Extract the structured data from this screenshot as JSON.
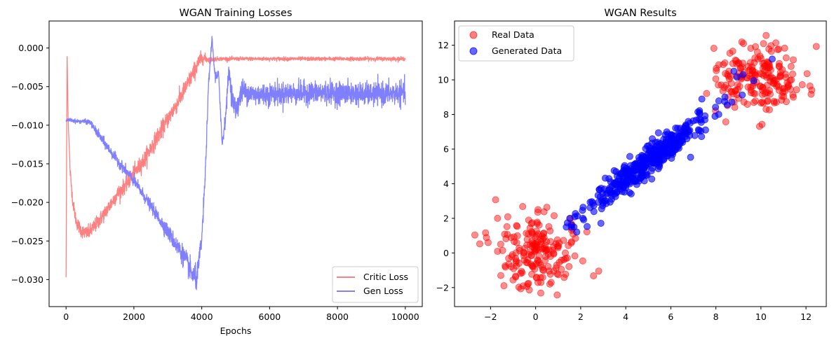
{
  "chart_data": [
    {
      "type": "line",
      "title": "WGAN Training Losses",
      "xlabel": "Epochs",
      "ylabel": "",
      "xlim": [
        -500,
        10500
      ],
      "ylim": [
        -0.0335,
        0.0035
      ],
      "xticks": [
        0,
        2000,
        4000,
        6000,
        8000,
        10000
      ],
      "xtick_labels": [
        "0",
        "2000",
        "4000",
        "6000",
        "8000",
        "10000"
      ],
      "yticks": [
        0.0,
        -0.005,
        -0.01,
        -0.015,
        -0.02,
        -0.025,
        -0.03
      ],
      "ytick_labels": [
        "0.000",
        "−0.005",
        "−0.010",
        "−0.015",
        "−0.020",
        "−0.025",
        "−0.030"
      ],
      "legend_position": "lower-right",
      "series": [
        {
          "name": "Critic Loss",
          "color": "#ff8080",
          "x": [
            0,
            30,
            60,
            120,
            200,
            300,
            450,
            600,
            700,
            800,
            1000,
            1200,
            1500,
            1800,
            2000,
            2300,
            2600,
            3000,
            3300,
            3600,
            3800,
            3950,
            4050,
            4200,
            4500,
            5000,
            6000,
            7000,
            8000,
            9000,
            10000
          ],
          "values": [
            -0.0297,
            -0.0006,
            -0.009,
            -0.016,
            -0.02,
            -0.0225,
            -0.0237,
            -0.024,
            -0.0238,
            -0.0233,
            -0.0222,
            -0.021,
            -0.019,
            -0.0175,
            -0.0163,
            -0.0145,
            -0.0122,
            -0.0092,
            -0.007,
            -0.0045,
            -0.0028,
            -0.0015,
            -0.0013,
            -0.0015,
            -0.0014,
            -0.0014,
            -0.0014,
            -0.0014,
            -0.0014,
            -0.0014,
            -0.0014
          ],
          "noise": [
            0,
            0,
            0,
            0.0006,
            0.0006,
            0.0007,
            0.0007,
            0.0007,
            0.0008,
            0.0008,
            0.0008,
            0.0008,
            0.0008,
            0.0008,
            0.0009,
            0.0009,
            0.0009,
            0.0009,
            0.0009,
            0.0009,
            0.0009,
            0.0008,
            0.0006,
            0.0003,
            0.0002,
            0.0002,
            0.0002,
            0.0002,
            0.0002,
            0.0002,
            0.0002
          ]
        },
        {
          "name": "Gen Loss",
          "color": "#8080ff",
          "x": [
            0,
            100,
            300,
            500,
            700,
            1000,
            1500,
            2000,
            2500,
            3000,
            3500,
            3700,
            3850,
            4000,
            4100,
            4200,
            4300,
            4400,
            4500,
            4600,
            4700,
            4800,
            4900,
            5000,
            5200,
            5500,
            6000,
            7000,
            8000,
            9000,
            10000
          ],
          "values": [
            -0.0094,
            -0.0093,
            -0.0095,
            -0.0095,
            -0.0096,
            -0.0115,
            -0.0145,
            -0.0172,
            -0.0205,
            -0.0238,
            -0.0272,
            -0.0292,
            -0.03,
            -0.0248,
            -0.0168,
            -0.0048,
            0.0012,
            -0.004,
            -0.0035,
            -0.0125,
            -0.009,
            -0.003,
            -0.0065,
            -0.008,
            -0.0055,
            -0.006,
            -0.006,
            -0.0058,
            -0.0058,
            -0.006,
            -0.0058
          ],
          "noise": [
            0.0001,
            0.0002,
            0.0002,
            0.0002,
            0.0003,
            0.0005,
            0.0005,
            0.0006,
            0.0006,
            0.0008,
            0.0011,
            0.0012,
            0.0012,
            0.001,
            0.0008,
            0.0006,
            0.0005,
            0.0006,
            0.0006,
            0.0006,
            0.0008,
            0.001,
            0.0011,
            0.0012,
            0.0012,
            0.0012,
            0.0012,
            0.0012,
            0.0012,
            0.0012,
            0.0012
          ]
        }
      ]
    },
    {
      "type": "scatter",
      "title": "WGAN Results",
      "xlabel": "",
      "ylabel": "",
      "xlim": [
        -3.6,
        12.9
      ],
      "ylim": [
        -3.1,
        13.4
      ],
      "xticks": [
        -2,
        0,
        2,
        4,
        6,
        8,
        10,
        12
      ],
      "xtick_labels": [
        "−2",
        "0",
        "2",
        "4",
        "6",
        "8",
        "10",
        "12"
      ],
      "yticks": [
        -2,
        0,
        2,
        4,
        6,
        8,
        10,
        12
      ],
      "ytick_labels": [
        "−2",
        "0",
        "2",
        "4",
        "6",
        "8",
        "10",
        "12"
      ],
      "legend_position": "top-left",
      "series": [
        {
          "name": "Real Data",
          "color": "#ff0000",
          "clusters": [
            {
              "cx": 0,
              "cy": 0,
              "sx": 1.0,
              "sy": 1.0,
              "n": 200
            },
            {
              "cx": 10,
              "cy": 10,
              "sx": 1.0,
              "sy": 1.0,
              "n": 200
            }
          ]
        },
        {
          "name": "Generated Data",
          "color": "#0000ff",
          "line": {
            "x_center": 5,
            "x_spread": 1.4,
            "slope": 1.0,
            "intercept": 0.3,
            "scatter": 0.45,
            "n": 400
          },
          "extra_points": [
            [
              1.7,
              1.5
            ],
            [
              2.1,
              2.0
            ],
            [
              8.8,
              10.5
            ],
            [
              10.5,
              11.2
            ],
            [
              9.2,
              10.3
            ],
            [
              8.4,
              9.0
            ]
          ]
        }
      ]
    }
  ]
}
